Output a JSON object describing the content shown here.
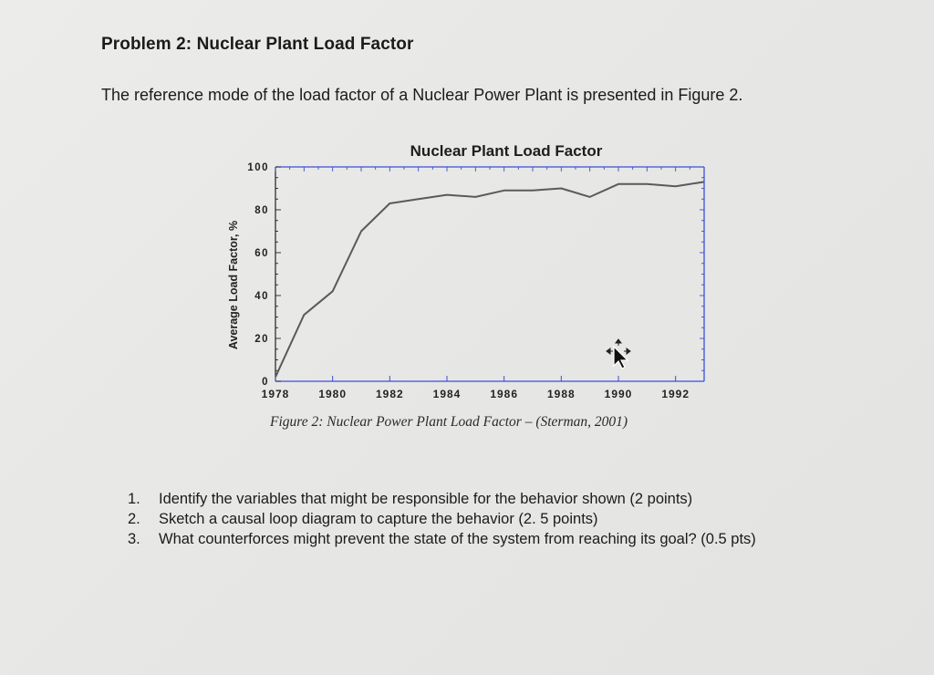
{
  "document": {
    "heading": "Problem 2: Nuclear Plant Load Factor",
    "intro": "The reference mode of the load factor of a Nuclear Power Plant is presented in Figure 2.",
    "caption": "Figure 2: Nuclear Power Plant Load Factor – (Sterman, 2001)",
    "questions": [
      {
        "num": "1.",
        "text": "Identify the variables that might be responsible for the behavior shown  (2 points)"
      },
      {
        "num": "2.",
        "text": "Sketch a causal loop diagram to capture the behavior (2. 5 points)"
      },
      {
        "num": "3.",
        "text": "What counterforces might prevent the state of the system from reaching its goal? (0.5 pts)"
      }
    ]
  },
  "chart_data": {
    "type": "line",
    "title": "Nuclear Plant Load Factor",
    "xlabel": "",
    "ylabel": "Average Load Factor, %",
    "xlim": [
      1978,
      1993
    ],
    "ylim": [
      0,
      100
    ],
    "x_ticks": [
      "1978",
      "1980",
      "1982",
      "1984",
      "1986",
      "1988",
      "1990",
      "1992"
    ],
    "y_ticks": [
      "0",
      "20",
      "40",
      "60",
      "80",
      "100"
    ],
    "series": [
      {
        "name": "",
        "x": [
          1978,
          1979,
          1980,
          1981,
          1982,
          1983,
          1984,
          1985,
          1986,
          1987,
          1988,
          1989,
          1990,
          1991,
          1992,
          1993
        ],
        "values": [
          2,
          31,
          42,
          70,
          83,
          85,
          87,
          86,
          89,
          89,
          90,
          86,
          92,
          92,
          91,
          93
        ]
      }
    ],
    "colors": {
      "line": "#5a5a5a",
      "frame": "#3b4fd8"
    },
    "grid": false
  }
}
